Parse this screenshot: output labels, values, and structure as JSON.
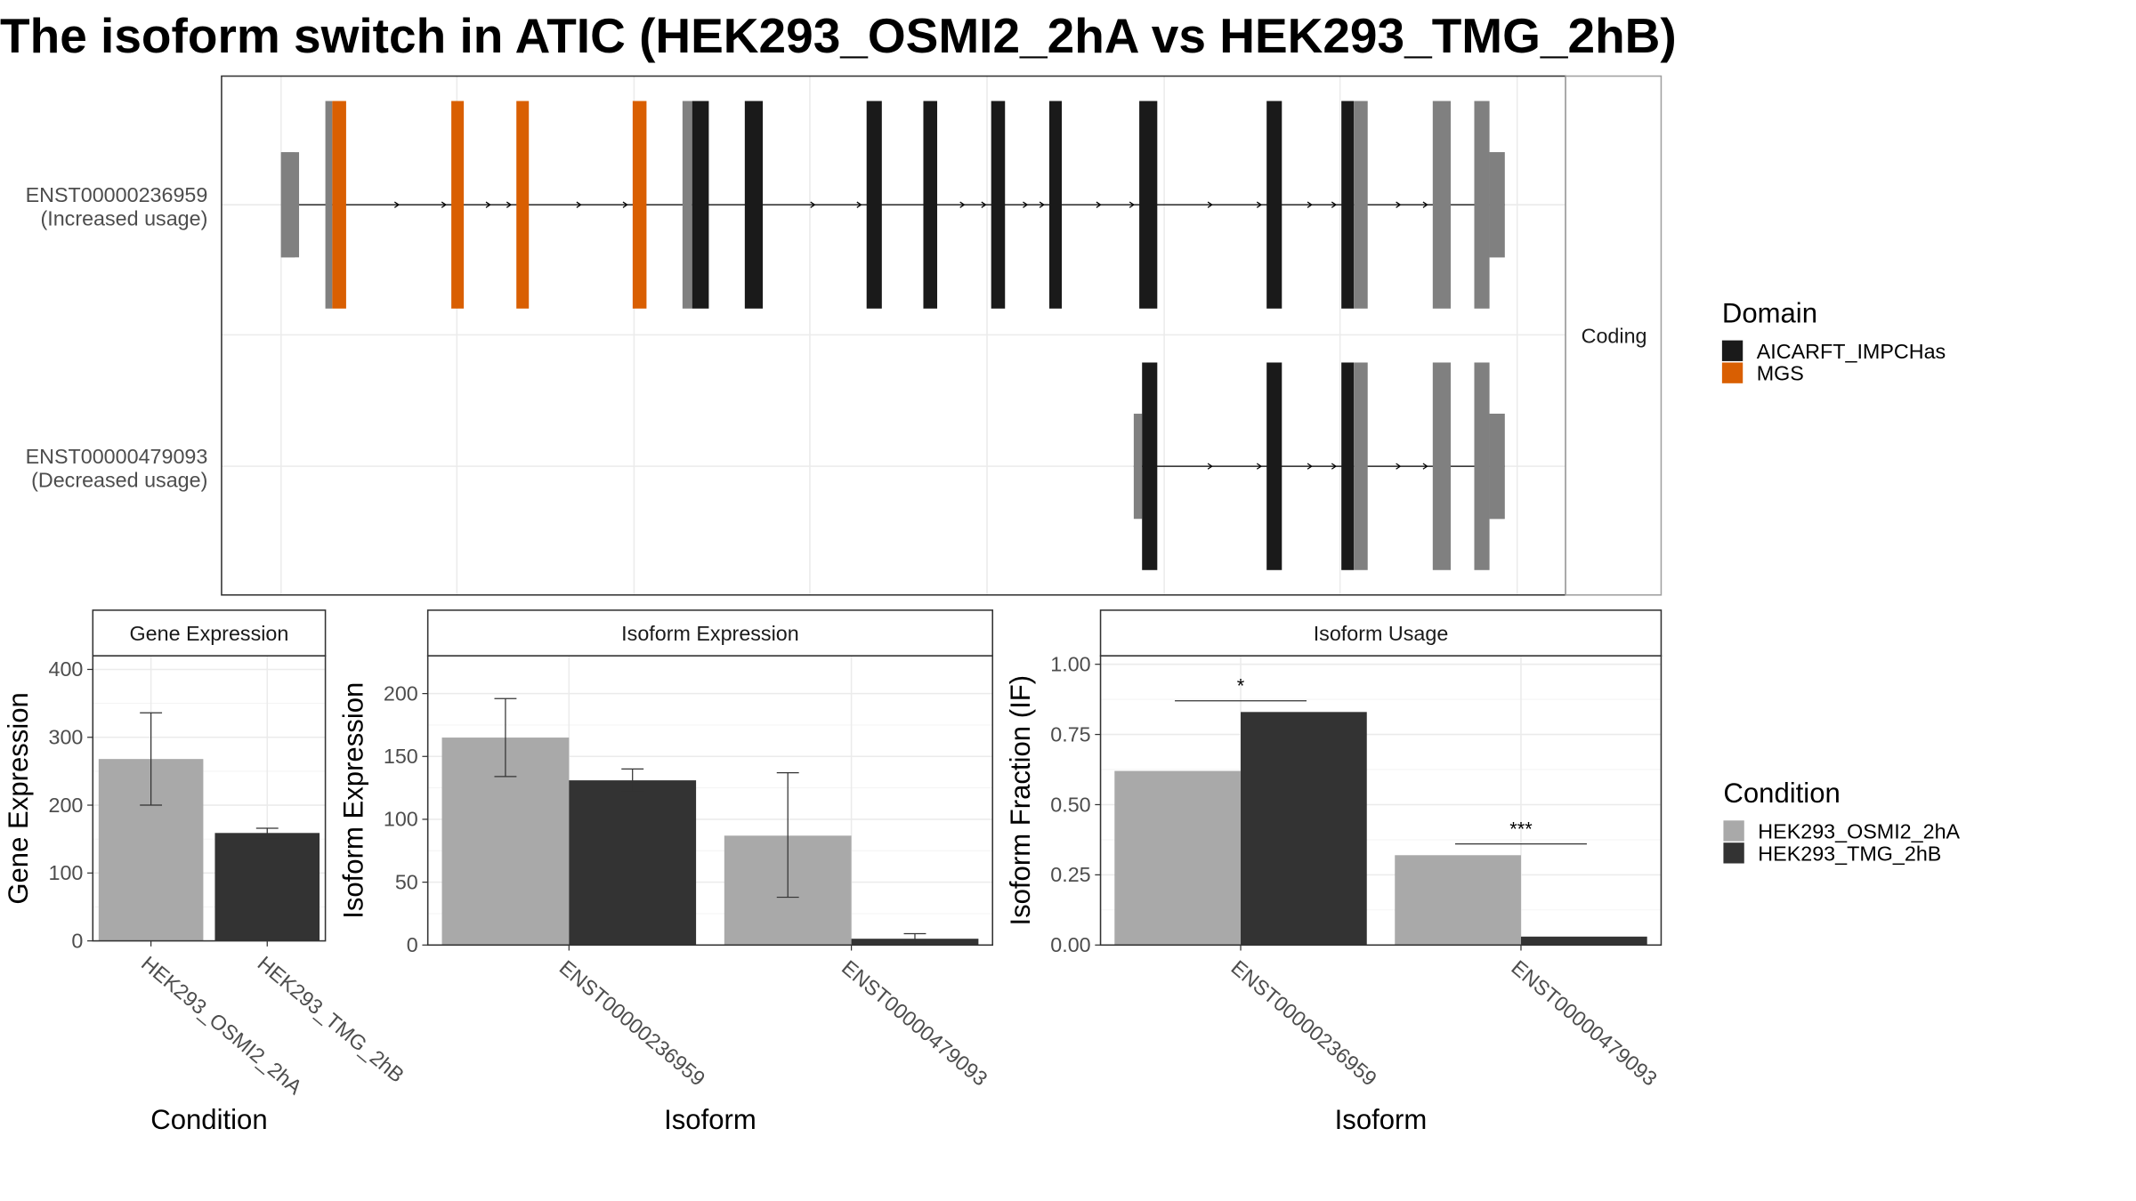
{
  "title": "The isoform switch in ATIC (HEK293_OSMI2_2hA vs HEK293_TMG_2hB)",
  "colors": {
    "domain_aicarft": "#1a1a1a",
    "domain_mgs": "#d95f02",
    "exon_plain": "#808080",
    "condition_a": "#a9a9a9",
    "condition_b": "#333333",
    "grid": "#ebebeb",
    "panel_border": "#333333",
    "strip_border": "#a0a0a0"
  },
  "structure": {
    "strip_label": "Coding",
    "legend_title": "Domain",
    "legend_items": [
      {
        "label": "AICARFT_IMPCHas",
        "color": "#1a1a1a"
      },
      {
        "label": "MGS",
        "color": "#d95f02"
      }
    ],
    "transcripts": [
      {
        "id": "ENST00000236959",
        "status": "(Increased usage)",
        "exons": [
          [
            203,
            216,
            "plain"
          ],
          [
            235,
            240,
            "plain"
          ],
          [
            240,
            250,
            "mgs"
          ],
          [
            326,
            335,
            "mgs"
          ],
          [
            373,
            382,
            "mgs"
          ],
          [
            457,
            467,
            "mgs"
          ],
          [
            493,
            500,
            "plain"
          ],
          [
            500,
            512,
            "aicarft"
          ],
          [
            538,
            551,
            "aicarft"
          ],
          [
            626,
            637,
            "aicarft"
          ],
          [
            667,
            677,
            "aicarft"
          ],
          [
            716,
            726,
            "aicarft"
          ],
          [
            758,
            767,
            "aicarft"
          ],
          [
            823,
            836,
            "aicarft"
          ],
          [
            915,
            926,
            "aicarft"
          ],
          [
            969,
            978,
            "aicarft"
          ],
          [
            978,
            988,
            "plain"
          ],
          [
            1035,
            1048,
            "plain"
          ],
          [
            1065,
            1076,
            "plain"
          ],
          [
            1076,
            1087,
            "plain"
          ]
        ]
      },
      {
        "id": "ENST00000479093",
        "status": "(Decreased usage)",
        "exons": [
          [
            819,
            825,
            "plain"
          ],
          [
            825,
            836,
            "aicarft"
          ],
          [
            915,
            926,
            "aicarft"
          ],
          [
            969,
            978,
            "aicarft"
          ],
          [
            978,
            988,
            "plain"
          ],
          [
            1035,
            1048,
            "plain"
          ],
          [
            1065,
            1076,
            "plain"
          ],
          [
            1076,
            1087,
            "plain"
          ]
        ]
      }
    ]
  },
  "condition_legend": {
    "title": "Condition",
    "items": [
      {
        "label": "HEK293_OSMI2_2hA",
        "color": "#a9a9a9"
      },
      {
        "label": "HEK293_TMG_2hB",
        "color": "#333333"
      }
    ]
  },
  "chart_data": [
    {
      "type": "bar",
      "panel": "Gene Expression",
      "xlabel": "Condition",
      "ylabel": "Gene Expression",
      "ylim": [
        0,
        420
      ],
      "yticks": [
        0,
        100,
        200,
        300,
        400
      ],
      "categories": [
        "HEK293_OSMI2_2hA",
        "HEK293_TMG_2hB"
      ],
      "values": [
        268,
        159
      ],
      "error_low": [
        200,
        152
      ],
      "error_high": [
        336,
        166
      ]
    },
    {
      "type": "bar",
      "panel": "Isoform Expression",
      "xlabel": "Isoform",
      "ylabel": "Isoform Expression",
      "ylim": [
        0,
        230
      ],
      "yticks": [
        0,
        50,
        100,
        150,
        200
      ],
      "categories": [
        "ENST00000236959",
        "ENST00000479093"
      ],
      "series": [
        {
          "name": "HEK293_OSMI2_2hA",
          "values": [
            165,
            87
          ],
          "error_low": [
            134,
            38
          ],
          "error_high": [
            196,
            137
          ]
        },
        {
          "name": "HEK293_TMG_2hB",
          "values": [
            131,
            5
          ],
          "error_low": [
            122,
            1
          ],
          "error_high": [
            140,
            9
          ]
        }
      ]
    },
    {
      "type": "bar",
      "panel": "Isoform Usage",
      "xlabel": "Isoform",
      "ylabel": "Isoform Fraction (IF)",
      "ylim": [
        0,
        1.03
      ],
      "yticks": [
        "0.00",
        "0.25",
        "0.50",
        "0.75",
        "1.00"
      ],
      "categories": [
        "ENST00000236959",
        "ENST00000479093"
      ],
      "series": [
        {
          "name": "HEK293_OSMI2_2hA",
          "values": [
            0.62,
            0.32
          ]
        },
        {
          "name": "HEK293_TMG_2hB",
          "values": [
            0.83,
            0.03
          ]
        }
      ],
      "significance": [
        {
          "category": "ENST00000236959",
          "label": "*",
          "y": 0.87
        },
        {
          "category": "ENST00000479093",
          "label": "***",
          "y": 0.36
        }
      ]
    }
  ]
}
